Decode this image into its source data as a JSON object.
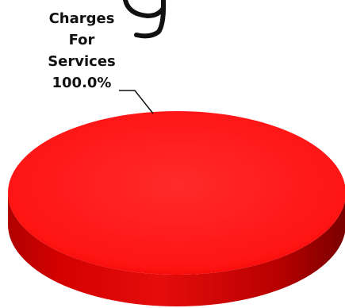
{
  "chart_data": {
    "type": "pie",
    "title": "",
    "labels": [
      "Charges For Services"
    ],
    "values": [
      100.0
    ],
    "data_labels": [
      "100.0%"
    ],
    "slice_colors": [
      "#ff1a1a"
    ],
    "style": "3d",
    "legend": "none"
  }
}
